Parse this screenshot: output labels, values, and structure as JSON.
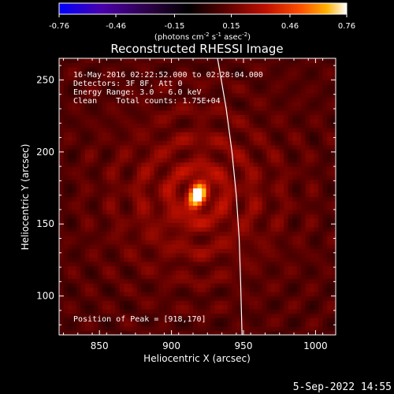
{
  "chart_data": {
    "type": "heatmap",
    "title": "Reconstructed RHESSI Image",
    "xlabel": "Heliocentric X (arcsec)",
    "ylabel": "Heliocentric Y (arcsec)",
    "xlim": [
      822,
      1014
    ],
    "ylim": [
      73,
      265
    ],
    "x_ticks": [
      850,
      900,
      950,
      1000
    ],
    "y_ticks": [
      100,
      150,
      200,
      250
    ],
    "colorbar": {
      "range": [
        -0.76,
        0.76
      ],
      "tick_values": [
        -0.76,
        -0.46,
        -0.15,
        0.15,
        0.46,
        0.76
      ],
      "tick_labels": [
        "-0.76",
        "-0.46",
        "-0.15",
        "0.15",
        "0.46",
        "0.76"
      ],
      "unit_label": "(photons cm-2 s-1 asec-2)",
      "colormap": [
        "#0000ff",
        "#4a00aa",
        "#2a0040",
        "#000000",
        "#5a0000",
        "#c01000",
        "#ff5000",
        "#ffb000",
        "#ffffff"
      ]
    },
    "info_lines": [
      "16-May-2016 02:22:52.000 to 02:28:04.000",
      "Detectors: 3F 8F, Att 0",
      "Energy Range: 3.0 - 6.0 keV",
      "Clean    Total counts: 1.75E+04"
    ],
    "peak": {
      "x": 918,
      "y": 170,
      "value": 0.76,
      "sigma_major": 7,
      "sigma_minor": 4,
      "tilt_deg": 20
    },
    "peak_label": "Position of Peak = [918,170]",
    "background_level": 0.1,
    "limb_curve": [
      [
        932,
        265
      ],
      [
        938,
        230
      ],
      [
        942,
        200
      ],
      [
        945,
        170
      ],
      [
        947,
        140
      ],
      [
        948,
        110
      ],
      [
        949,
        73
      ]
    ],
    "footer_date": "5-Sep-2022 14:55"
  }
}
